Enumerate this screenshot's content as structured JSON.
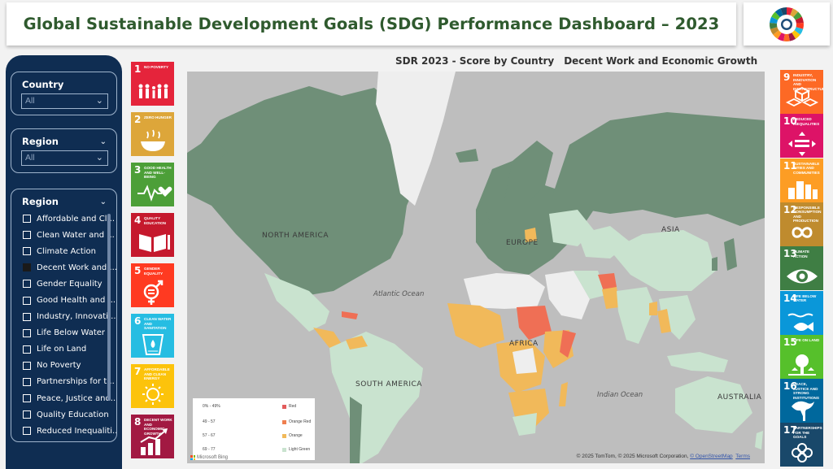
{
  "header": {
    "title": "Global Sustainable Development Goals (SDG) Performance Dashboard – 2023",
    "logo_icon": "sdg-wheel-icon"
  },
  "slicers": {
    "country": {
      "title": "Country",
      "value": "All"
    },
    "region": {
      "title": "Region",
      "value": "All"
    },
    "region_list": {
      "title": "Region",
      "items": [
        {
          "label": "Affordable and Cl...",
          "checked": false
        },
        {
          "label": "Clean Water and ...",
          "checked": false
        },
        {
          "label": "Climate Action",
          "checked": false
        },
        {
          "label": "Decent Work and ...",
          "checked": true
        },
        {
          "label": "Gender Equality",
          "checked": false
        },
        {
          "label": "Good Health and ...",
          "checked": false
        },
        {
          "label": "Industry, Innovati...",
          "checked": false
        },
        {
          "label": "Life Below Water",
          "checked": false
        },
        {
          "label": "Life on Land",
          "checked": false
        },
        {
          "label": "No Poverty",
          "checked": false
        },
        {
          "label": "Partnerships for t...",
          "checked": false
        },
        {
          "label": "Peace, Justice and...",
          "checked": false
        },
        {
          "label": "Quality Education",
          "checked": false
        },
        {
          "label": "Reduced Inequaliti...",
          "checked": false
        }
      ]
    }
  },
  "map": {
    "title": "SDR 2023 - Score by Country",
    "subtitle": "Decent Work and Economic Growth",
    "region_labels": [
      "NORTH AMERICA",
      "EUROPE",
      "ASIA",
      "AFRICA",
      "SOUTH AMERICA",
      "AUSTRALIA"
    ],
    "ocean_labels": [
      "Atlantic Ocean",
      "Indian Ocean"
    ],
    "legend": [
      {
        "range": "0% - 49%",
        "label": "Red",
        "color": "#e35c5c"
      },
      {
        "range": "49 - 57",
        "label": "Orange Red",
        "color": "#ef7f4f"
      },
      {
        "range": "57 - 67",
        "label": "Orange",
        "color": "#f1b95a"
      },
      {
        "range": "69 - 77",
        "label": "Light Green",
        "color": "#c9e3cf"
      }
    ],
    "attribution": "© 2025 TomTom, © 2025 Microsoft Corporation, ",
    "attribution_link": "© OpenStreetMap",
    "terms": "Terms",
    "ms_logo_text": "Microsoft Bing",
    "colors": {
      "ocean": "#bebebe",
      "high": "#6f8f78",
      "mid": "#c9e3cf",
      "orange": "#f1b95a",
      "red": "#ef6f55",
      "nodata": "#eeeeee"
    }
  },
  "sdg_tiles_left": [
    {
      "num": "1",
      "label": "No Poverty",
      "color": "#e5243b",
      "icon": "family-icon"
    },
    {
      "num": "2",
      "label": "Zero Hunger",
      "color": "#dda63a",
      "icon": "bowl-icon"
    },
    {
      "num": "3",
      "label": "Good Health and Well-Being",
      "color": "#4c9f38",
      "icon": "heartbeat-icon"
    },
    {
      "num": "4",
      "label": "Quality Education",
      "color": "#c5192d",
      "icon": "book-icon"
    },
    {
      "num": "5",
      "label": "Gender Equality",
      "color": "#ff3a21",
      "icon": "gender-icon"
    },
    {
      "num": "6",
      "label": "Clean Water and Sanitation",
      "color": "#26bde2",
      "icon": "water-icon"
    },
    {
      "num": "7",
      "label": "Affordable and Clean Energy",
      "color": "#fcc30b",
      "icon": "sun-icon"
    },
    {
      "num": "8",
      "label": "Decent Work and Economic Growth",
      "color": "#a21942",
      "icon": "chart-up-icon"
    }
  ],
  "sdg_tiles_right": [
    {
      "num": "9",
      "label": "Industry, Innovation and Infrastructure",
      "color": "#fd6925",
      "icon": "cubes-icon"
    },
    {
      "num": "10",
      "label": "Reduced Inequalities",
      "color": "#dd1367",
      "icon": "equal-icon"
    },
    {
      "num": "11",
      "label": "Sustainable Cities and Communities",
      "color": "#fd9d24",
      "icon": "city-icon"
    },
    {
      "num": "12",
      "label": "Responsible Consumption and Production",
      "color": "#bf8b2e",
      "icon": "infinity-icon"
    },
    {
      "num": "13",
      "label": "Climate Action",
      "color": "#3f7e44",
      "icon": "eye-icon"
    },
    {
      "num": "14",
      "label": "Life Below Water",
      "color": "#0a97d9",
      "icon": "fish-icon"
    },
    {
      "num": "15",
      "label": "Life on Land",
      "color": "#56c02b",
      "icon": "tree-icon"
    },
    {
      "num": "16",
      "label": "Peace, Justice and Strong Institutions",
      "color": "#00689d",
      "icon": "dove-icon"
    },
    {
      "num": "17",
      "label": "Partnerships for the Goals",
      "color": "#19486a",
      "icon": "rings-icon"
    }
  ]
}
